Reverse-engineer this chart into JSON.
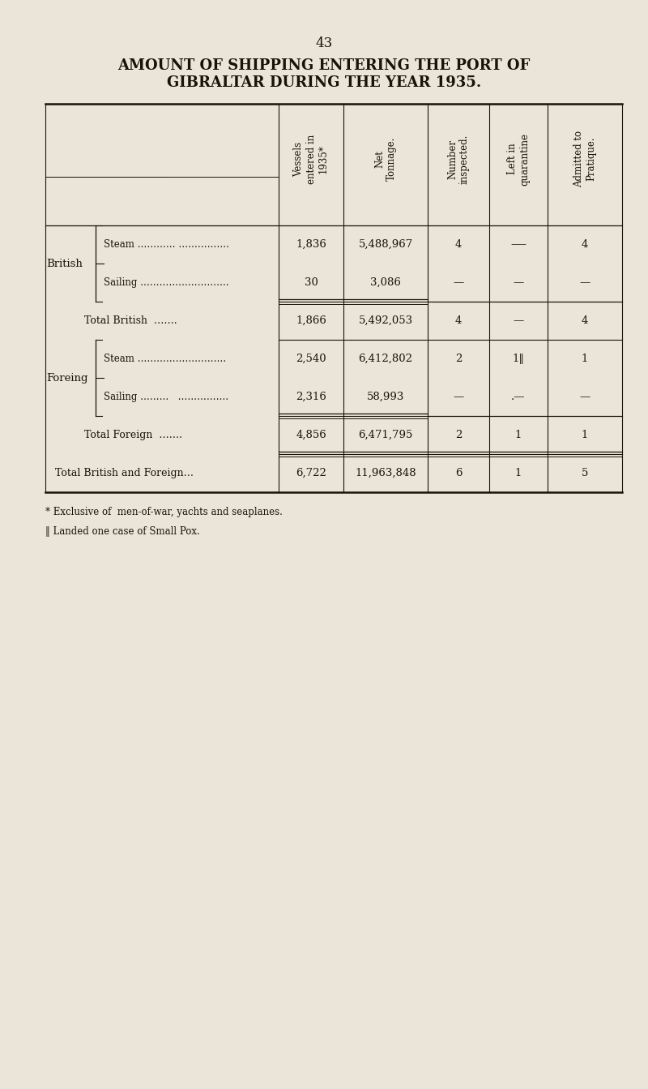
{
  "page_number": "43",
  "title_line1": "AMOUNT OF SHIPPING ENTERING THE PORT OF",
  "title_line2": "GIBRALTAR DURING THE YEAR 1935.",
  "bg_color": "#EAE5D8",
  "text_color": "#1a1208",
  "col_headers": [
    "Vessels\nentered in\n1935*",
    "Net\nTonnage.",
    "Number\ninspected.",
    "Left in\nquarantine",
    "Admitted to\nPratique."
  ],
  "rows": [
    {
      "label": "Steam ………… …………….",
      "group": "British",
      "group_type": "steam",
      "vessels": "1,836",
      "tonnage": "5,488,967",
      "inspected": "4",
      "quarantine": "—–",
      "pratique": "4"
    },
    {
      "label": "Sailing ……………………….",
      "group": "British",
      "group_type": "sailing",
      "vessels": "30",
      "tonnage": "3,086",
      "inspected": "—",
      "quarantine": "—",
      "pratique": "—"
    },
    {
      "label": "Total British  …….",
      "group": "total_british",
      "group_type": "total",
      "vessels": "1,866",
      "tonnage": "5,492,053",
      "inspected": "4",
      "quarantine": "—",
      "pratique": "4"
    },
    {
      "label": "Steam ……………………….",
      "group": "Foreing",
      "group_type": "steam",
      "vessels": "2,540",
      "tonnage": "6,412,802",
      "inspected": "2",
      "quarantine": "1‖",
      "pratique": "1"
    },
    {
      "label": "Sailing ………   …………….",
      "group": "Foreing",
      "group_type": "sailing",
      "vessels": "2,316",
      "tonnage": "58,993",
      "inspected": "—",
      "quarantine": ".—",
      "pratique": "—"
    },
    {
      "label": "Total Foreign  …….",
      "group": "total_foreign",
      "group_type": "total",
      "vessels": "4,856",
      "tonnage": "6,471,795",
      "inspected": "2",
      "quarantine": "1",
      "pratique": "1"
    },
    {
      "label": "Total British and Foreign…",
      "group": "grand_total",
      "group_type": "grand_total",
      "vessels": "6,722",
      "tonnage": "11,963,848",
      "inspected": "6",
      "quarantine": "1",
      "pratique": "5"
    }
  ],
  "footnote1": "* Exclusive of  men-of-war, yachts and seaplanes.",
  "footnote2": "‖ Landed one case of Small Pox."
}
